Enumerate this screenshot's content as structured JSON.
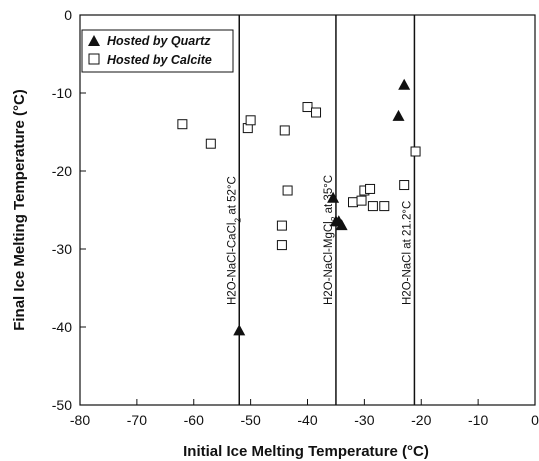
{
  "chart_data": {
    "type": "scatter",
    "title": "",
    "xlabel": "Initial Ice Melting Temperature (°C)",
    "ylabel": "Final Ice Melting Temperature (°C)",
    "xlim": [
      -80,
      0
    ],
    "ylim": [
      -50,
      0
    ],
    "xticks": [
      -80,
      -70,
      -60,
      -50,
      -40,
      -30,
      -20,
      -10,
      0
    ],
    "yticks": [
      0,
      -10,
      -20,
      -30,
      -40,
      -50
    ],
    "grid": false,
    "legend_position": "top-left",
    "series": [
      {
        "name": "Hosted by Quartz",
        "marker": "filled-triangle",
        "color": "#111111",
        "points": [
          {
            "x": -52,
            "y": -40.5
          },
          {
            "x": -35.5,
            "y": -23.5
          },
          {
            "x": -35,
            "y": -26.5
          },
          {
            "x": -34.5,
            "y": -26.5
          },
          {
            "x": -34,
            "y": -27
          },
          {
            "x": -24,
            "y": -13
          },
          {
            "x": -23,
            "y": -9
          }
        ]
      },
      {
        "name": "Hosted by Calcite",
        "marker": "open-square",
        "color": "#111111",
        "points": [
          {
            "x": -62,
            "y": -14
          },
          {
            "x": -57,
            "y": -16.5
          },
          {
            "x": -50.5,
            "y": -14.5
          },
          {
            "x": -50,
            "y": -13.5
          },
          {
            "x": -44,
            "y": -14.8
          },
          {
            "x": -40,
            "y": -11.8
          },
          {
            "x": -38.5,
            "y": -12.5
          },
          {
            "x": -43.5,
            "y": -22.5
          },
          {
            "x": -44.5,
            "y": -27
          },
          {
            "x": -44.5,
            "y": -29.5
          },
          {
            "x": -32,
            "y": -24
          },
          {
            "x": -30.5,
            "y": -23.8
          },
          {
            "x": -30,
            "y": -22.5
          },
          {
            "x": -29,
            "y": -22.3
          },
          {
            "x": -28.5,
            "y": -24.5
          },
          {
            "x": -26.5,
            "y": -24.5
          },
          {
            "x": -23,
            "y": -21.8
          },
          {
            "x": -21,
            "y": -17.5
          }
        ]
      }
    ],
    "reference_lines": [
      {
        "x": -52,
        "label_main": "H2O-NaCl-CaCl",
        "label_sub": "2",
        "label_tail": " at 52°C"
      },
      {
        "x": -35,
        "label_main": "H2O-NaCl-MgCl",
        "label_sub": "2",
        "label_tail": " at 35°C"
      },
      {
        "x": -21.2,
        "label_main": "H2O-NaCl at 21.2°C",
        "label_sub": "",
        "label_tail": ""
      }
    ]
  }
}
